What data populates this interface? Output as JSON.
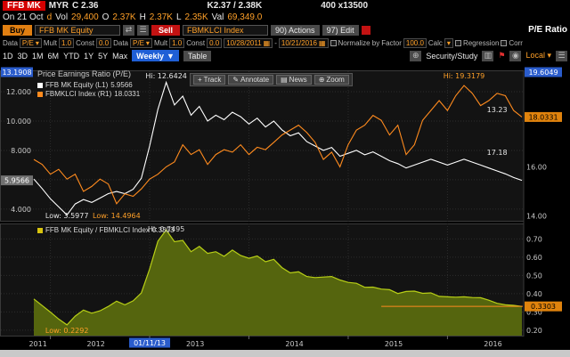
{
  "titlebar": {
    "ticker": "FFB MK",
    "currency": "MYR",
    "last": "C 2.36",
    "bid_ask": "K2.37 / 2.38K",
    "lot": "400 x13500",
    "session": "On 21 Oct",
    "delay_flag": "d",
    "vol_label": "Vol",
    "vol": "29,400",
    "o_label": "O",
    "o": "2.37K",
    "h_label": "H",
    "h": "2.37K",
    "l_label": "L",
    "l": "2.35K",
    "val_label": "Val",
    "val": "69,349.0"
  },
  "toolbar": {
    "buy_label": "Buy",
    "buy_security": "FFB MK Equity",
    "sell_label": "Sell",
    "sell_security": "FBMKLCI Index",
    "actions_label": "90) Actions",
    "edit_label": "97) Edit",
    "title": "P/E Ratio"
  },
  "controls": {
    "data_label": "Data",
    "data_value": "P/E",
    "mult_label": "Mult",
    "mult_value": "1.0",
    "const_label": "Const",
    "const_value": "0.0",
    "data2_value": "P/E",
    "mult2_value": "1.0",
    "const2_value": "0.0",
    "date_from": "10/28/2011",
    "date_to": "10/21/2016",
    "normalize_label": "Normalize by",
    "factor_label": "Factor",
    "factor_value": "100.0",
    "calc_label": "Calc",
    "regression_label": "Regression",
    "corr_label": "Corr",
    "local_label": "Local"
  },
  "periods": {
    "items": [
      "1D",
      "3D",
      "1M",
      "6M",
      "YTD",
      "1Y",
      "5Y",
      "Max"
    ],
    "frequency": "Weekly",
    "table_label": "Table",
    "security_study": "Security/Study"
  },
  "chart_toolbar": {
    "track": "Track",
    "annotate": "Annotate",
    "news": "News",
    "zoom": "Zoom"
  },
  "icons": {
    "plus": "+",
    "pencil": "✎",
    "news": "▤",
    "zoom": "⊕",
    "calendar": "▦",
    "chevron": "▾",
    "chevron_solid": "▼",
    "flag": "⚑",
    "menu": "☰",
    "layout": "▥",
    "camera": "◉",
    "swap": "⇄"
  },
  "chart_data": {
    "type": "line",
    "title": "Price Earnings Ratio (P/E)",
    "frequency": "Weekly",
    "date_range": [
      "10/28/2011",
      "10/21/2016"
    ],
    "x_axis": {
      "year_labels": [
        "2011",
        "2012",
        "2013",
        "2014",
        "2015",
        "2016"
      ],
      "year_centers_idx": [
        0.5,
        7.5,
        19.5,
        31.5,
        43.5,
        55.5
      ],
      "year_boundaries_idx": [
        2,
        14,
        26,
        38,
        50
      ],
      "cursor_date": "01/11/13",
      "cursor_idx": 14
    },
    "series": [
      {
        "label": "FFB MK Equity (L1)",
        "last": "5.9566",
        "color": "#ffffff",
        "axis": "left",
        "values": [
          6.05,
          5.4,
          4.7,
          4.15,
          3.5977,
          4.35,
          4.65,
          4.45,
          4.75,
          5.05,
          5.2,
          5.05,
          5.35,
          6.1,
          8.3,
          10.8,
          12.6424,
          11.1,
          11.7,
          10.4,
          11.0,
          10.0,
          10.4,
          10.1,
          10.6,
          10.3,
          9.8,
          10.2,
          9.6,
          10.0,
          9.4,
          9.0,
          9.2,
          8.6,
          8.3,
          8.0,
          8.2,
          7.6,
          7.8,
          8.0,
          7.7,
          7.9,
          7.6,
          7.3,
          7.1,
          6.8,
          7.0,
          7.2,
          7.4,
          7.2,
          7.0,
          7.2,
          7.4,
          7.2,
          7.0,
          6.8,
          6.6,
          6.4,
          6.15,
          5.9566
        ]
      },
      {
        "label": "FBMKLCI Index (R1)",
        "last": "18.0331",
        "color": "#ff8b1e",
        "axis": "right",
        "values": [
          16.3,
          16.1,
          15.7,
          15.9,
          15.5,
          15.7,
          15.0,
          15.2,
          15.5,
          15.3,
          14.4964,
          14.9,
          14.8,
          15.1,
          15.5,
          15.7,
          16.0,
          16.2,
          16.9,
          16.5,
          16.7,
          16.1,
          16.5,
          16.7,
          16.6,
          16.9,
          16.5,
          16.8,
          16.7,
          17.0,
          17.3,
          17.5,
          17.7,
          17.4,
          17.0,
          16.3,
          16.6,
          16.0,
          16.9,
          17.5,
          17.7,
          18.1,
          17.9,
          17.3,
          17.7,
          16.5,
          16.9,
          17.9,
          18.3,
          18.7,
          18.3,
          18.9,
          19.3179,
          19.0,
          18.5,
          18.7,
          19.0,
          18.9,
          18.3,
          18.0331
        ]
      }
    ],
    "left_axis": {
      "range": [
        3.2,
        13.4
      ],
      "ticks": [
        12,
        10,
        8,
        6,
        4
      ],
      "tick_labels": [
        "12.000",
        "10.000",
        "8.000",
        "6.000",
        "4.000"
      ],
      "hi_box": "13.1908",
      "last_box": "5.9566"
    },
    "right_axis": {
      "range": [
        13.8,
        19.9
      ],
      "ticks": [
        18,
        16,
        14
      ],
      "tick_labels": [
        "18.00",
        "16.00",
        "14.00"
      ],
      "hi_box": "19.6049",
      "last_box": "18.0331"
    },
    "annotations": [
      {
        "panel": 1,
        "text": "Hi: 12.6424",
        "xi": 16,
        "pos": "top",
        "color": "#e8e8e8"
      },
      {
        "panel": 1,
        "text": "Hi: 19.3179",
        "xi": 52,
        "pos": "top",
        "color": "#ffa028"
      },
      {
        "panel": 1,
        "text": "Low: 3.5977",
        "xi": 4,
        "pos": "bottom",
        "color": "#e8e8e8"
      },
      {
        "panel": 1,
        "text": "Low: 14.4964",
        "xi": 10,
        "pos": "bottom",
        "color": "#ffa028"
      },
      {
        "panel": 1,
        "text": "13.23",
        "xi": 56,
        "v": 10.6,
        "axis": "left",
        "color": "#e8e8e8"
      },
      {
        "panel": 1,
        "text": "17.18",
        "xi": 56,
        "v": 7.7,
        "axis": "left",
        "color": "#e8e8e8"
      },
      {
        "panel": 2,
        "text": "Hi: 0.7495",
        "xi": 16,
        "pos": "top",
        "color": "#d8d8d8"
      },
      {
        "panel": 2,
        "text": "Low: 0.2292",
        "xi": 4,
        "pos": "bottom",
        "color": "#ffa028"
      }
    ],
    "ratio_panel": {
      "legend": "FFB MK Equity / FBMKLCI Index",
      "last": "0.3303",
      "line_color": "#b8cf16",
      "fill_color": "#55650e",
      "swatch_color": "#d8c40e",
      "range": [
        0.17,
        0.78
      ],
      "ticks": [
        0.7,
        0.6,
        0.5,
        0.4,
        0.3,
        0.2
      ],
      "tick_labels": [
        "0.70",
        "0.60",
        "0.50",
        "0.40",
        "0.30",
        "0.20"
      ],
      "last_box": "0.3303",
      "hline": {
        "v": 0.3303,
        "from_idx": 42
      },
      "values": [
        0.371,
        0.335,
        0.299,
        0.261,
        0.2292,
        0.277,
        0.31,
        0.293,
        0.306,
        0.33,
        0.359,
        0.339,
        0.361,
        0.404,
        0.535,
        0.688,
        0.7495,
        0.685,
        0.692,
        0.63,
        0.659,
        0.621,
        0.63,
        0.605,
        0.639,
        0.609,
        0.594,
        0.607,
        0.575,
        0.588,
        0.543,
        0.514,
        0.52,
        0.494,
        0.488,
        0.491,
        0.494,
        0.475,
        0.462,
        0.457,
        0.435,
        0.436,
        0.425,
        0.422,
        0.401,
        0.412,
        0.414,
        0.402,
        0.404,
        0.385,
        0.383,
        0.381,
        0.383,
        0.379,
        0.378,
        0.364,
        0.347,
        0.339,
        0.336,
        0.3303
      ]
    }
  }
}
